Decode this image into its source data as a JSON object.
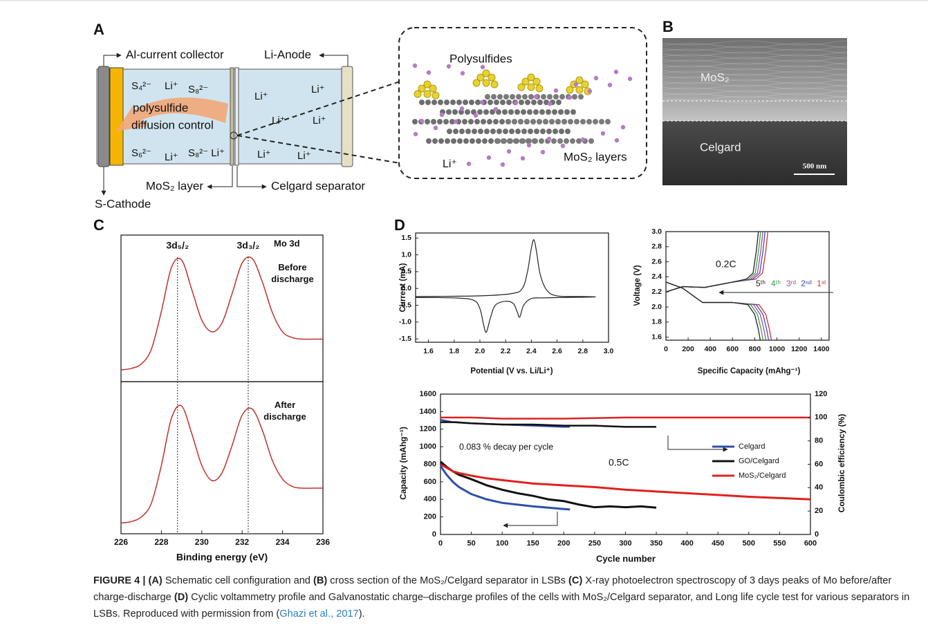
{
  "figure": {
    "panel_a": {
      "label": "A",
      "al_collector": "Al-current collector",
      "anode": "Li-Anode",
      "ions": [
        "S₄²⁻",
        "Li⁺",
        "S₈²⁻",
        "Li⁺",
        "Li⁺",
        "Li⁺",
        "Li⁺",
        "S₆²⁻",
        "Li⁺",
        "S₈²⁻ Li⁺",
        "Li⁺",
        "Li⁺"
      ],
      "arrow_text_1": "polysulfide",
      "arrow_text_2": "diffusion  control",
      "mos2_layer": "MoS₂ layer",
      "separator": "Celgard separator",
      "cathode": "S-Cathode",
      "inset_title": "Polysulfides",
      "inset_ion": "Li⁺",
      "inset_layers": "MoS₂ layers"
    },
    "panel_b": {
      "label": "B",
      "top": "MoS₂",
      "bottom": "Celgard",
      "scale": "500 nm"
    },
    "panel_c_label": "C",
    "panel_d_label": "D",
    "caption": [
      {
        "text": "FIGURE 4 | (A)",
        "style": "bold"
      },
      {
        "text": " Schematic cell configuration and ",
        "style": "normal"
      },
      {
        "text": "(B)",
        "style": "bold"
      },
      {
        "text": " cross section of the MoS₂/Celgard separator in LSBs ",
        "style": "normal"
      },
      {
        "text": "(C)",
        "style": "bold"
      },
      {
        "text": " X-ray photoelectron spectroscopy of 3 days peaks of Mo before/after charge-discharge ",
        "style": "normal"
      },
      {
        "text": "(D)",
        "style": "bold"
      },
      {
        "text": " Cyclic voltammetry profile and Galvanostatic charge–discharge profiles of the cells with MoS₂/Celgard separator, and Long life cycle test for various separators in LSBs. Reproduced with permission from (",
        "style": "normal"
      },
      {
        "text": "Ghazi et al., 2017",
        "style": "link"
      },
      {
        "text": ").",
        "style": "normal"
      }
    ]
  },
  "chart_data": [
    {
      "type": "line",
      "xlabel": "Binding energy (eV)",
      "xlim": [
        226,
        236
      ],
      "xticks": [
        226,
        228,
        230,
        232,
        234,
        236
      ],
      "ylim": [
        0,
        1
      ],
      "annotations": {
        "peak_1": "3d₅/₂",
        "peak_2": "3d₃/₂",
        "element": "Mo 3d"
      },
      "peak_positions": [
        228.8,
        232.3
      ],
      "x": [
        226,
        226.5,
        227,
        227.5,
        228,
        228.5,
        229,
        229.5,
        230,
        230.5,
        231,
        231.5,
        232,
        232.5,
        233,
        233.5,
        234,
        234.5,
        235,
        235.5,
        236
      ],
      "series": [
        {
          "name": "Before discharge",
          "color": "#c0302a",
          "values": [
            0.08,
            0.09,
            0.12,
            0.22,
            0.48,
            0.78,
            0.83,
            0.63,
            0.42,
            0.34,
            0.4,
            0.6,
            0.81,
            0.84,
            0.68,
            0.47,
            0.34,
            0.3,
            0.29,
            0.29,
            0.29
          ]
        },
        {
          "name": "After discharge",
          "color": "#c0302a",
          "values": [
            0.07,
            0.08,
            0.11,
            0.2,
            0.45,
            0.76,
            0.84,
            0.66,
            0.45,
            0.35,
            0.4,
            0.58,
            0.78,
            0.82,
            0.68,
            0.48,
            0.36,
            0.31,
            0.3,
            0.3,
            0.3
          ]
        }
      ]
    },
    {
      "type": "line",
      "xlabel": "Potential (V vs. Li/Li⁺)",
      "ylabel": "Current (mA)",
      "xlim": [
        1.5,
        3.0
      ],
      "xticks": [
        1.6,
        1.8,
        {
          "value": 2,
          "label": "2.0"
        },
        2.2,
        2.4,
        2.6,
        2.8,
        {
          "value": 3,
          "label": "3.0"
        }
      ],
      "ylim": [
        -1.6,
        1.65
      ],
      "yticks": [
        1.5,
        {
          "value": 1,
          "label": "1.0"
        },
        0.5,
        {
          "value": 0,
          "label": "0.0"
        },
        -0.5,
        {
          "value": -1,
          "label": "-1.0"
        },
        -1.5
      ],
      "series": [
        {
          "color": "#222222",
          "x": [
            1.5,
            1.8,
            1.95,
            2.0,
            2.03,
            2.05,
            2.08,
            2.12,
            2.2,
            2.26,
            2.29,
            2.31,
            2.34,
            2.4,
            2.5,
            2.6,
            2.8,
            2.9,
            2.8,
            2.6,
            2.52,
            2.47,
            2.44,
            2.42,
            2.4,
            2.37,
            2.33,
            2.25,
            2.0,
            1.5
          ],
          "values": [
            -0.27,
            -0.28,
            -0.35,
            -0.6,
            -1.1,
            -1.3,
            -0.9,
            -0.5,
            -0.38,
            -0.45,
            -0.7,
            -0.85,
            -0.5,
            -0.3,
            -0.28,
            -0.27,
            -0.26,
            -0.25,
            -0.24,
            -0.22,
            -0.05,
            0.4,
            1.1,
            1.45,
            1.2,
            0.5,
            0.0,
            -0.15,
            -0.22,
            -0.24
          ]
        }
      ]
    },
    {
      "type": "line",
      "xlabel": "Specific Capacity (mAhg⁻¹)",
      "ylabel": "Voltage (V)",
      "xlim": [
        0,
        1470
      ],
      "xticks": [
        0,
        200,
        400,
        600,
        800,
        1000,
        1200,
        1400
      ],
      "ylim": [
        1.56,
        3.0
      ],
      "yticks": [
        1.6,
        1.8,
        {
          "value": 2,
          "label": "2.0"
        },
        2.2,
        2.4,
        2.6,
        2.8,
        {
          "value": 3,
          "label": "3.0"
        }
      ],
      "annotations": {
        "rate": "0.2C"
      },
      "series": [
        {
          "name": "1ˢᵗ",
          "color": "#d0312d",
          "x": [
            0,
            150,
            330,
            600,
            840,
            900,
            930,
            950,
            null,
            0,
            150,
            350,
            600,
            810,
            870,
            900,
            918
          ],
          "values": [
            2.33,
            2.25,
            2.06,
            2.06,
            2.03,
            1.9,
            1.72,
            1.56,
            null,
            2.2,
            2.27,
            2.26,
            2.33,
            2.37,
            2.45,
            2.75,
            3.0
          ]
        },
        {
          "name": "2ⁿᵈ",
          "color": "#3b4cc0",
          "x": [
            0,
            150,
            330,
            600,
            815,
            875,
            905,
            925,
            null,
            0,
            150,
            350,
            600,
            785,
            845,
            875,
            893
          ],
          "values": [
            2.33,
            2.25,
            2.06,
            2.06,
            2.03,
            1.9,
            1.72,
            1.56,
            null,
            2.2,
            2.27,
            2.26,
            2.33,
            2.37,
            2.45,
            2.75,
            3.0
          ]
        },
        {
          "name": "3ʳᵈ",
          "color": "#a04ca0",
          "x": [
            0,
            150,
            330,
            600,
            790,
            850,
            880,
            900,
            null,
            0,
            150,
            350,
            600,
            765,
            825,
            855,
            873
          ],
          "values": [
            2.33,
            2.25,
            2.06,
            2.06,
            2.03,
            1.9,
            1.72,
            1.56,
            null,
            2.2,
            2.27,
            2.26,
            2.33,
            2.37,
            2.45,
            2.75,
            3.0
          ]
        },
        {
          "name": "4ᵗʰ",
          "color": "#3aa04a",
          "x": [
            0,
            150,
            330,
            600,
            765,
            825,
            855,
            875,
            null,
            0,
            150,
            350,
            600,
            745,
            805,
            835,
            853
          ],
          "values": [
            2.33,
            2.25,
            2.06,
            2.06,
            2.03,
            1.9,
            1.72,
            1.56,
            null,
            2.2,
            2.27,
            2.26,
            2.33,
            2.37,
            2.45,
            2.75,
            3.0
          ]
        },
        {
          "name": "5ᵗʰ",
          "color": "#222222",
          "x": [
            0,
            150,
            330,
            600,
            740,
            800,
            830,
            850,
            null,
            0,
            150,
            350,
            600,
            725,
            785,
            815,
            833
          ],
          "values": [
            2.33,
            2.25,
            2.06,
            2.06,
            2.03,
            1.9,
            1.72,
            1.56,
            null,
            2.2,
            2.27,
            2.26,
            2.33,
            2.37,
            2.45,
            2.75,
            3.0
          ]
        }
      ]
    },
    {
      "type": "line",
      "xlabel": "Cycle number",
      "ylabel": "Capacity (mAhg⁻¹)",
      "y2label": "Coulombic efficiency (%)",
      "xlim": [
        0,
        600
      ],
      "xticks": [
        0,
        50,
        100,
        150,
        200,
        250,
        300,
        350,
        400,
        450,
        500,
        550,
        600
      ],
      "ylim": [
        0,
        1600
      ],
      "yticks": [
        0,
        200,
        400,
        600,
        800,
        1000,
        1200,
        1400,
        1600
      ],
      "y2lim": [
        0,
        120
      ],
      "y2ticks": [
        0,
        20,
        40,
        60,
        80,
        100,
        120
      ],
      "legend": "right",
      "annotations": {
        "decay": "0.083 % decay per cycle",
        "rate": "0.5C"
      },
      "series": [
        {
          "name": "Celgard",
          "color": "#2e4fa8",
          "x": [
            0,
            10,
            20,
            30,
            50,
            75,
            100,
            125,
            150,
            175,
            200,
            210
          ],
          "values": [
            780,
            680,
            600,
            540,
            460,
            400,
            360,
            340,
            320,
            305,
            290,
            285
          ]
        },
        {
          "name": "GO/Celgard",
          "color": "#111111",
          "x": [
            0,
            10,
            20,
            30,
            50,
            75,
            100,
            125,
            150,
            175,
            200,
            225,
            250,
            275,
            300,
            325,
            350
          ],
          "values": [
            830,
            770,
            720,
            680,
            630,
            560,
            510,
            470,
            440,
            400,
            380,
            340,
            310,
            320,
            310,
            320,
            305
          ]
        },
        {
          "name": "MoS₂/Celgard",
          "color": "#e02020",
          "x": [
            0,
            10,
            20,
            30,
            50,
            75,
            100,
            125,
            150,
            175,
            200,
            250,
            300,
            350,
            400,
            450,
            500,
            550,
            600
          ],
          "values": [
            800,
            760,
            720,
            700,
            670,
            640,
            620,
            600,
            580,
            570,
            560,
            540,
            510,
            490,
            470,
            450,
            430,
            415,
            400
          ]
        },
        {
          "color": "#2e4fa8",
          "axis": "y2",
          "x": [
            0,
            20,
            50,
            100,
            150,
            200,
            210
          ],
          "values": [
            98,
            96,
            95,
            94,
            93,
            92,
            92
          ]
        },
        {
          "color": "#111111",
          "axis": "y2",
          "x": [
            0,
            25,
            50,
            100,
            150,
            200,
            250,
            300,
            350
          ],
          "values": [
            96,
            96,
            95,
            94,
            94,
            93,
            93,
            92,
            92
          ]
        },
        {
          "color": "#e02020",
          "axis": "y2",
          "x": [
            0,
            50,
            100,
            200,
            300,
            400,
            500,
            600
          ],
          "values": [
            100,
            100,
            99,
            99,
            100,
            100,
            100,
            100
          ]
        }
      ]
    }
  ]
}
